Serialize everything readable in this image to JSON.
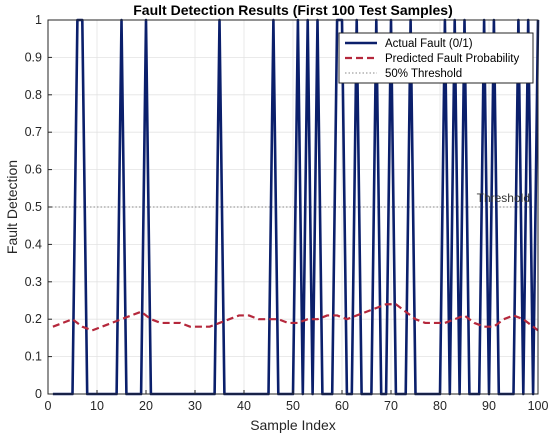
{
  "chart_data": {
    "type": "line",
    "title": "Fault Detection Results (First 100 Test Samples)",
    "xlabel": "Sample Index",
    "ylabel": "Fault Detection",
    "xlim": [
      0,
      100
    ],
    "ylim": [
      0,
      1
    ],
    "xticks": [
      0,
      10,
      20,
      30,
      40,
      50,
      60,
      70,
      80,
      90,
      100
    ],
    "yticks": [
      0,
      0.1,
      0.2,
      0.3,
      0.4,
      0.5,
      0.6,
      0.7,
      0.8,
      0.9,
      1
    ],
    "grid": true,
    "legend_position": "top-right",
    "annotation": {
      "text": "Threshold",
      "x": 100,
      "y": 0.5
    },
    "series": [
      {
        "name": "Actual Fault (0/1)",
        "style": "solid",
        "color": "#0B1F6B",
        "x": [
          1,
          2,
          3,
          4,
          5,
          6,
          7,
          8,
          9,
          10,
          11,
          12,
          13,
          14,
          15,
          16,
          17,
          18,
          19,
          20,
          21,
          22,
          23,
          24,
          25,
          26,
          27,
          28,
          29,
          30,
          31,
          32,
          33,
          34,
          35,
          36,
          37,
          38,
          39,
          40,
          41,
          42,
          43,
          44,
          45,
          46,
          47,
          48,
          49,
          50,
          51,
          52,
          53,
          54,
          55,
          56,
          57,
          58,
          59,
          60,
          61,
          62,
          63,
          64,
          65,
          66,
          67,
          68,
          69,
          70,
          71,
          72,
          73,
          74,
          75,
          76,
          77,
          78,
          79,
          80,
          81,
          82,
          83,
          84,
          85,
          86,
          87,
          88,
          89,
          90,
          91,
          92,
          93,
          94,
          95,
          96,
          97,
          98,
          99,
          100
        ],
        "y": [
          0,
          0,
          0,
          0,
          0,
          1,
          1,
          0,
          0,
          0,
          0,
          0,
          0,
          0,
          1,
          0,
          0,
          0,
          0,
          1,
          0,
          0,
          0,
          0,
          0,
          0,
          0,
          0,
          0,
          0,
          0,
          0,
          0,
          0,
          1,
          0,
          0,
          0,
          0,
          0,
          0,
          0,
          0,
          0,
          0,
          1,
          0,
          0,
          0,
          0,
          1,
          0,
          1,
          0,
          1,
          0,
          0,
          0,
          1,
          1,
          0,
          0,
          1,
          0,
          0,
          0,
          1,
          0,
          0,
          1,
          0,
          0,
          0,
          1,
          0,
          0,
          0,
          0,
          0,
          0,
          1,
          0,
          1,
          0,
          1,
          0,
          0,
          0,
          1,
          0,
          1,
          0,
          0,
          0,
          0,
          1,
          0,
          1,
          0,
          1
        ]
      },
      {
        "name": "Predicted Fault Probability",
        "style": "dashed",
        "color": "#B5283C",
        "x": [
          1,
          3,
          5,
          7,
          9,
          11,
          13,
          15,
          17,
          19,
          21,
          23,
          25,
          27,
          29,
          31,
          33,
          35,
          37,
          39,
          41,
          43,
          45,
          47,
          49,
          51,
          53,
          55,
          57,
          59,
          61,
          63,
          65,
          67,
          69,
          71,
          73,
          75,
          77,
          79,
          81,
          83,
          85,
          87,
          89,
          91,
          93,
          95,
          97,
          99,
          100
        ],
        "y": [
          0.18,
          0.19,
          0.2,
          0.18,
          0.17,
          0.18,
          0.19,
          0.2,
          0.21,
          0.22,
          0.2,
          0.19,
          0.19,
          0.19,
          0.18,
          0.18,
          0.18,
          0.19,
          0.2,
          0.21,
          0.21,
          0.2,
          0.2,
          0.2,
          0.19,
          0.19,
          0.2,
          0.2,
          0.21,
          0.21,
          0.2,
          0.21,
          0.22,
          0.23,
          0.24,
          0.24,
          0.22,
          0.2,
          0.19,
          0.19,
          0.19,
          0.2,
          0.21,
          0.19,
          0.18,
          0.18,
          0.2,
          0.21,
          0.2,
          0.18,
          0.17
        ]
      },
      {
        "name": "50% Threshold",
        "style": "dotted",
        "color": "#8A8A8A",
        "x": [
          0,
          100
        ],
        "y": [
          0.5,
          0.5
        ]
      }
    ]
  }
}
